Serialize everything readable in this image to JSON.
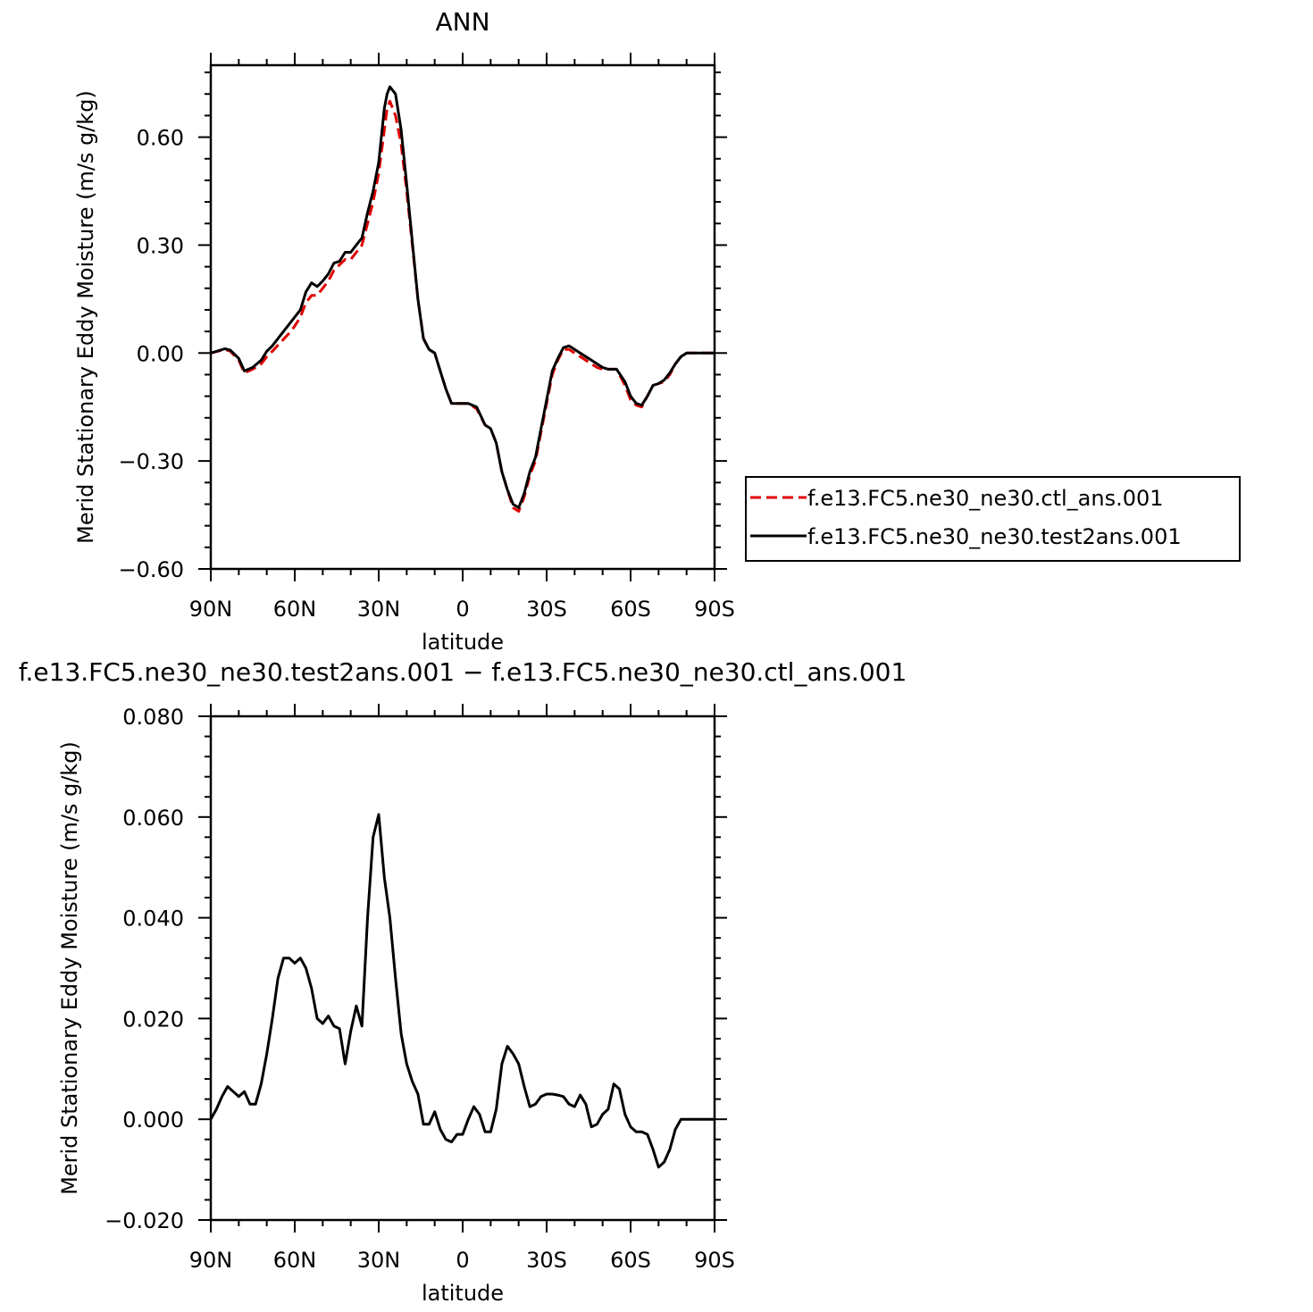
{
  "chart_data": [
    {
      "type": "line",
      "title": "ANN",
      "xlabel": "latitude",
      "ylabel": "Merid Stationary Eddy Moisture (m/s g/kg)",
      "xlim": [
        90,
        -90
      ],
      "ylim": [
        -0.6,
        0.8
      ],
      "xticks": [
        90,
        60,
        30,
        0,
        -30,
        -60,
        -90
      ],
      "xtick_labels": [
        "90N",
        "60N",
        "30N",
        "0",
        "30S",
        "60S",
        "90S"
      ],
      "yticks": [
        -0.6,
        -0.3,
        0.0,
        0.3,
        0.6
      ],
      "ytick_labels": [
        "−0.60",
        "−0.30",
        "0.00",
        "0.30",
        "0.60"
      ],
      "legend_position": "right",
      "series": [
        {
          "name": "f.e13.FC5.ne30_ne30.ctl_ans.001",
          "color": "#e00000",
          "dash": "dashed",
          "x": [
            90,
            85,
            83,
            80,
            78,
            75,
            72,
            70,
            68,
            65,
            62,
            60,
            58,
            56,
            54,
            52,
            50,
            48,
            46,
            44,
            42,
            40,
            38,
            36,
            34,
            32,
            30,
            28,
            27,
            26,
            24,
            22,
            20,
            18,
            16,
            14,
            12,
            10,
            8,
            6,
            4,
            2,
            0,
            -2,
            -5,
            -8,
            -10,
            -12,
            -14,
            -16,
            -18,
            -20,
            -22,
            -24,
            -26,
            -28,
            -30,
            -32,
            -34,
            -36,
            -38,
            -40,
            -42,
            -44,
            -46,
            -48,
            -50,
            -52,
            -55,
            -58,
            -60,
            -62,
            -64,
            -66,
            -68,
            -70,
            -72,
            -74,
            -76,
            -78,
            -80,
            -82,
            -84,
            -86,
            -88,
            -90
          ],
          "y": [
            0.0,
            0.01,
            0.005,
            -0.02,
            -0.055,
            -0.045,
            -0.03,
            -0.01,
            0.005,
            0.03,
            0.055,
            0.075,
            0.1,
            0.14,
            0.16,
            0.16,
            0.18,
            0.2,
            0.23,
            0.245,
            0.26,
            0.26,
            0.28,
            0.3,
            0.36,
            0.42,
            0.5,
            0.62,
            0.68,
            0.7,
            0.66,
            0.58,
            0.45,
            0.3,
            0.15,
            0.04,
            0.01,
            0.0,
            -0.05,
            -0.1,
            -0.14,
            -0.14,
            -0.14,
            -0.14,
            -0.155,
            -0.2,
            -0.21,
            -0.25,
            -0.33,
            -0.38,
            -0.43,
            -0.44,
            -0.4,
            -0.34,
            -0.3,
            -0.22,
            -0.14,
            -0.06,
            -0.02,
            0.01,
            0.01,
            0.0,
            -0.01,
            -0.02,
            -0.03,
            -0.04,
            -0.045,
            -0.045,
            -0.045,
            -0.09,
            -0.13,
            -0.145,
            -0.15,
            -0.12,
            -0.09,
            -0.085,
            -0.08,
            -0.06,
            -0.03,
            -0.01,
            0.0,
            0.0,
            0.0,
            0.0,
            0.0,
            0.0
          ]
        },
        {
          "name": "f.e13.FC5.ne30_ne30.test2ans.001",
          "color": "#000000",
          "dash": "solid",
          "x": [
            90,
            85,
            83,
            80,
            78,
            75,
            72,
            70,
            68,
            65,
            62,
            60,
            58,
            56,
            54,
            52,
            50,
            48,
            46,
            44,
            42,
            40,
            38,
            36,
            34,
            32,
            30,
            28,
            27,
            26,
            24,
            22,
            20,
            18,
            16,
            14,
            12,
            10,
            8,
            6,
            4,
            2,
            0,
            -2,
            -5,
            -8,
            -10,
            -12,
            -14,
            -16,
            -18,
            -20,
            -22,
            -24,
            -26,
            -28,
            -30,
            -32,
            -34,
            -36,
            -38,
            -40,
            -42,
            -44,
            -46,
            -48,
            -50,
            -52,
            -55,
            -58,
            -60,
            -62,
            -64,
            -66,
            -68,
            -70,
            -72,
            -74,
            -76,
            -78,
            -80,
            -82,
            -84,
            -86,
            -88,
            -90
          ],
          "y": [
            0.0,
            0.012,
            0.008,
            -0.015,
            -0.05,
            -0.04,
            -0.02,
            0.005,
            0.02,
            0.05,
            0.08,
            0.1,
            0.12,
            0.17,
            0.195,
            0.185,
            0.2,
            0.22,
            0.25,
            0.255,
            0.28,
            0.28,
            0.3,
            0.32,
            0.39,
            0.45,
            0.53,
            0.68,
            0.72,
            0.74,
            0.72,
            0.62,
            0.47,
            0.31,
            0.15,
            0.04,
            0.01,
            0.0,
            -0.05,
            -0.1,
            -0.14,
            -0.14,
            -0.14,
            -0.14,
            -0.15,
            -0.2,
            -0.21,
            -0.25,
            -0.33,
            -0.38,
            -0.42,
            -0.43,
            -0.39,
            -0.33,
            -0.29,
            -0.21,
            -0.13,
            -0.05,
            -0.015,
            0.015,
            0.02,
            0.01,
            0.0,
            -0.01,
            -0.02,
            -0.03,
            -0.04,
            -0.045,
            -0.045,
            -0.08,
            -0.12,
            -0.14,
            -0.145,
            -0.12,
            -0.09,
            -0.085,
            -0.075,
            -0.055,
            -0.03,
            -0.01,
            0.0,
            0.0,
            0.0,
            0.0,
            0.0,
            0.0
          ]
        }
      ]
    },
    {
      "type": "line",
      "title": "f.e13.FC5.ne30_ne30.test2ans.001 − f.e13.FC5.ne30_ne30.ctl_ans.001",
      "xlabel": "latitude",
      "ylabel": "Merid Stationary Eddy Moisture (m/s g/kg)",
      "xlim": [
        90,
        -90
      ],
      "ylim": [
        -0.02,
        0.08
      ],
      "xticks": [
        90,
        60,
        30,
        0,
        -30,
        -60,
        -90
      ],
      "xtick_labels": [
        "90N",
        "60N",
        "30N",
        "0",
        "30S",
        "60S",
        "90S"
      ],
      "yticks": [
        -0.02,
        0.0,
        0.02,
        0.04,
        0.06,
        0.08
      ],
      "ytick_labels": [
        "−0.020",
        "0.000",
        "0.020",
        "0.040",
        "0.060",
        "0.080"
      ],
      "series": [
        {
          "color": "#000000",
          "dash": "solid",
          "x": [
            90,
            88,
            86,
            84,
            82,
            80,
            78,
            76,
            74,
            72,
            70,
            68,
            66,
            64,
            62,
            60,
            58,
            56,
            54,
            52,
            50,
            48,
            46,
            44,
            42,
            40,
            38,
            36,
            34,
            32,
            30,
            28,
            26,
            24,
            22,
            20,
            18,
            16,
            14,
            12,
            10,
            8,
            6,
            4,
            2,
            0,
            -2,
            -4,
            -6,
            -8,
            -10,
            -12,
            -14,
            -16,
            -18,
            -20,
            -22,
            -24,
            -26,
            -28,
            -30,
            -32,
            -34,
            -36,
            -38,
            -40,
            -42,
            -44,
            -46,
            -48,
            -50,
            -52,
            -54,
            -56,
            -58,
            -60,
            -62,
            -64,
            -66,
            -68,
            -70,
            -72,
            -74,
            -76,
            -78,
            -80,
            -82,
            -84,
            -86,
            -88,
            -90
          ],
          "y": [
            0.0,
            0.002,
            0.0045,
            0.0065,
            0.0055,
            0.0045,
            0.0055,
            0.003,
            0.003,
            0.007,
            0.013,
            0.02,
            0.028,
            0.032,
            0.032,
            0.031,
            0.032,
            0.03,
            0.026,
            0.02,
            0.019,
            0.0205,
            0.0185,
            0.018,
            0.011,
            0.0175,
            0.0225,
            0.0185,
            0.04,
            0.056,
            0.0605,
            0.048,
            0.04,
            0.028,
            0.017,
            0.011,
            0.0075,
            0.005,
            -0.001,
            -0.001,
            0.0015,
            -0.002,
            -0.004,
            -0.0045,
            -0.003,
            -0.003,
            0.0,
            0.0025,
            0.001,
            -0.0025,
            -0.0025,
            0.002,
            0.011,
            0.0145,
            0.013,
            0.011,
            0.0065,
            0.0025,
            0.003,
            0.0045,
            0.005,
            0.005,
            0.0048,
            0.0045,
            0.003,
            0.0025,
            0.0048,
            0.003,
            -0.0015,
            -0.001,
            0.001,
            0.002,
            0.007,
            0.006,
            0.001,
            -0.0015,
            -0.0025,
            -0.0025,
            -0.003,
            -0.006,
            -0.0095,
            -0.0085,
            -0.006,
            -0.002,
            0.0,
            0.0,
            0.0,
            0.0,
            0.0,
            0.0,
            0.0
          ]
        }
      ]
    }
  ]
}
